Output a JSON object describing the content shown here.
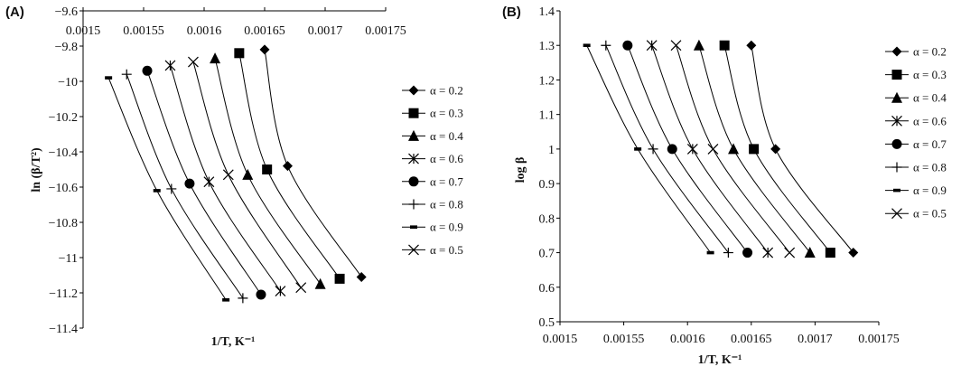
{
  "chart_data": [
    {
      "type": "line",
      "panel_label": "(A)",
      "title": "",
      "xlabel": "1/T, K⁻¹",
      "ylabel": "ln (β/T²)",
      "xlim": [
        0.0015,
        0.00175
      ],
      "ylim": [
        -11.4,
        -9.6
      ],
      "x_axis_position": "top",
      "xticks": [
        "0.0015",
        "0.00155",
        "0.0016",
        "0.00165",
        "0.0017",
        "0.00175"
      ],
      "yticks": [
        "-9.6",
        "-9.8",
        "-10",
        "-10.2",
        "-10.4",
        "-10.6",
        "-10.8",
        "-11",
        "-11.2",
        "-11.4"
      ],
      "grid": false,
      "legend_position": "right",
      "series": [
        {
          "name": "α = 0.2",
          "marker": "diamond",
          "x": [
            0.00165,
            0.001669,
            0.00173
          ],
          "y": [
            -9.82,
            -10.48,
            -11.11
          ]
        },
        {
          "name": "α = 0.3",
          "marker": "square",
          "x": [
            0.001629,
            0.001652,
            0.001712
          ],
          "y": [
            -9.84,
            -10.5,
            -11.12
          ]
        },
        {
          "name": "α = 0.4",
          "marker": "triangle",
          "x": [
            0.001609,
            0.001636,
            0.001696
          ],
          "y": [
            -9.87,
            -10.53,
            -11.15
          ]
        },
        {
          "name": "α = 0.6",
          "marker": "star",
          "x": [
            0.001572,
            0.001604,
            0.001663
          ],
          "y": [
            -9.91,
            -10.57,
            -11.19
          ]
        },
        {
          "name": "α = 0.7",
          "marker": "circle",
          "x": [
            0.001553,
            0.001588,
            0.001647
          ],
          "y": [
            -9.94,
            -10.58,
            -11.21
          ]
        },
        {
          "name": "α = 0.8",
          "marker": "plus",
          "x": [
            0.001536,
            0.001573,
            0.001632
          ],
          "y": [
            -9.96,
            -10.61,
            -11.23
          ]
        },
        {
          "name": "α = 0.9",
          "marker": "dash",
          "x": [
            0.001521,
            0.001561,
            0.001618
          ],
          "y": [
            -9.98,
            -10.62,
            -11.24
          ]
        },
        {
          "name": "α = 0.5",
          "marker": "x",
          "x": [
            0.001591,
            0.00162,
            0.00168
          ],
          "y": [
            -9.89,
            -10.53,
            -11.17
          ]
        }
      ]
    },
    {
      "type": "line",
      "panel_label": "(B)",
      "title": "",
      "xlabel": "1/T, K⁻¹",
      "ylabel": "log β",
      "xlim": [
        0.0015,
        0.00175
      ],
      "ylim": [
        0.5,
        1.4
      ],
      "x_axis_position": "bottom",
      "xticks": [
        "0.0015",
        "0.00155",
        "0.0016",
        "0.00165",
        "0.0017",
        "0.00175"
      ],
      "yticks": [
        "1.4",
        "1.3",
        "1.2",
        "1.1",
        "1",
        "0.9",
        "0.8",
        "0.7",
        "0.6",
        "0.5"
      ],
      "grid": false,
      "legend_position": "right",
      "series": [
        {
          "name": "α = 0.2",
          "marker": "diamond",
          "x": [
            0.00165,
            0.001669,
            0.00173
          ],
          "y": [
            1.3,
            1.0,
            0.7
          ]
        },
        {
          "name": "α = 0.3",
          "marker": "square",
          "x": [
            0.001629,
            0.001652,
            0.001712
          ],
          "y": [
            1.3,
            1.0,
            0.7
          ]
        },
        {
          "name": "α = 0.4",
          "marker": "triangle",
          "x": [
            0.001609,
            0.001636,
            0.001696
          ],
          "y": [
            1.3,
            1.0,
            0.7
          ]
        },
        {
          "name": "α = 0.6",
          "marker": "star",
          "x": [
            0.001572,
            0.001604,
            0.001663
          ],
          "y": [
            1.3,
            1.0,
            0.7
          ]
        },
        {
          "name": "α = 0.7",
          "marker": "circle",
          "x": [
            0.001553,
            0.001588,
            0.001647
          ],
          "y": [
            1.3,
            1.0,
            0.7
          ]
        },
        {
          "name": "α = 0.8",
          "marker": "plus",
          "x": [
            0.001536,
            0.001573,
            0.001632
          ],
          "y": [
            1.3,
            1.0,
            0.7
          ]
        },
        {
          "name": "α = 0.9",
          "marker": "dash",
          "x": [
            0.001521,
            0.001561,
            0.001618
          ],
          "y": [
            1.3,
            1.0,
            0.7
          ]
        },
        {
          "name": "α = 0.5",
          "marker": "x",
          "x": [
            0.001591,
            0.00162,
            0.00168
          ],
          "y": [
            1.3,
            1.0,
            0.7
          ]
        }
      ]
    }
  ]
}
